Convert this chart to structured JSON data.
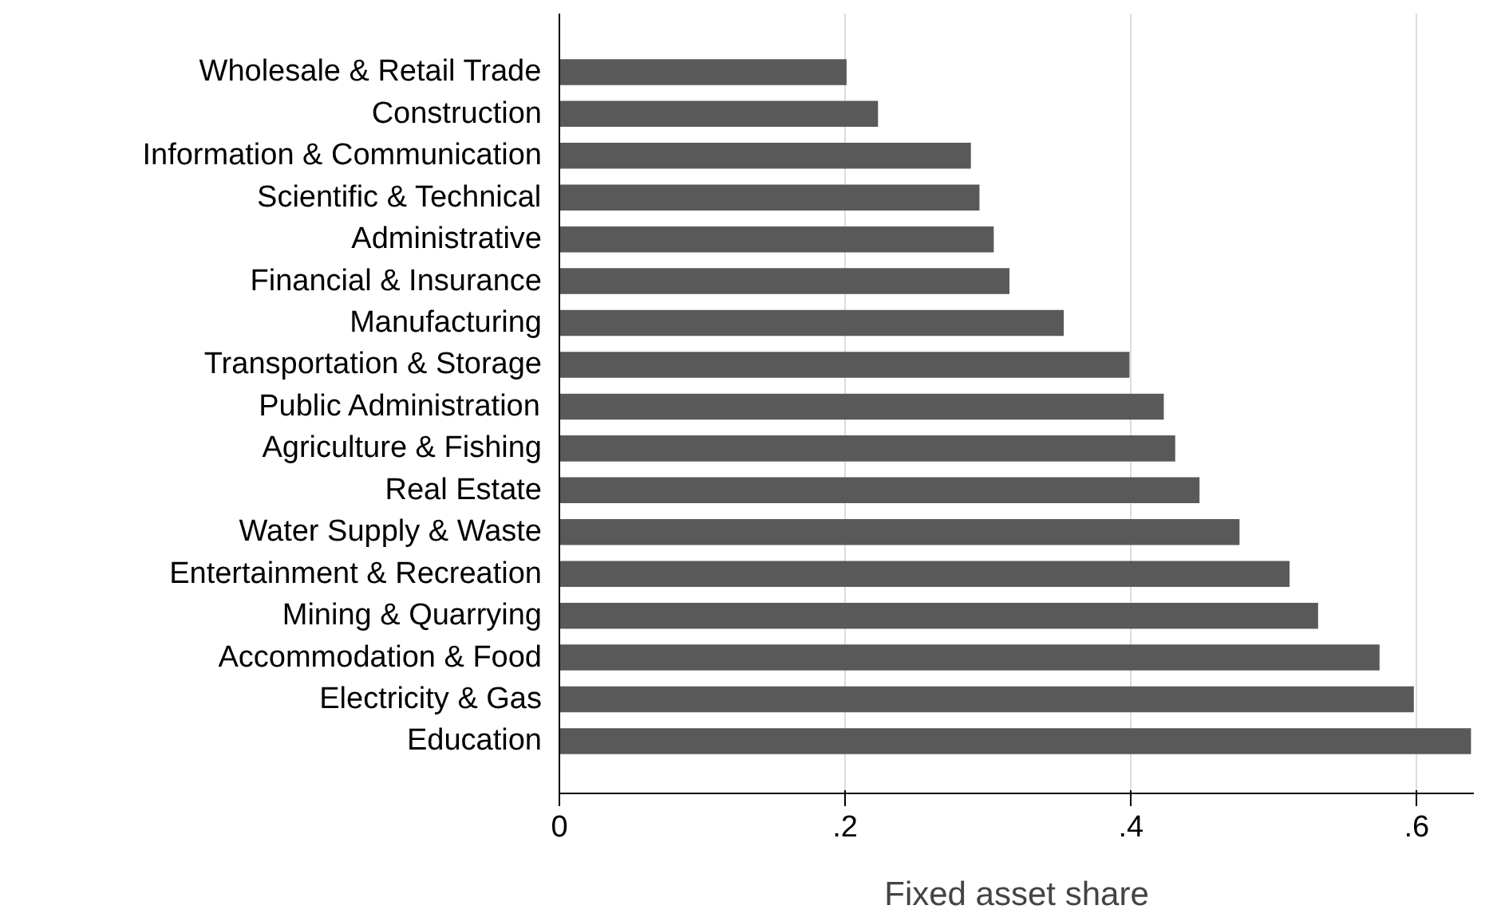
{
  "chart_data": {
    "type": "bar",
    "orientation": "horizontal",
    "xlabel": "Fixed asset share",
    "categories": [
      "Wholesale & Retail Trade",
      "Construction",
      "Information & Communication",
      "Scientific & Technical",
      "Administrative",
      "Financial & Insurance",
      "Manufacturing",
      "Transportation & Storage",
      "Public Administration",
      "Agriculture & Fishing",
      "Real Estate",
      "Water Supply & Waste",
      "Entertainment & Recreation",
      "Mining & Quarrying",
      "Accommodation & Food",
      "Electricity & Gas",
      "Education"
    ],
    "values": [
      0.201,
      0.223,
      0.288,
      0.294,
      0.304,
      0.315,
      0.353,
      0.399,
      0.423,
      0.431,
      0.448,
      0.476,
      0.511,
      0.531,
      0.574,
      0.598,
      0.638
    ],
    "color": "#595959",
    "xlim": [
      0,
      0.64
    ],
    "xticks": [
      0,
      {
        "value": 0.2,
        "label": ".2"
      },
      {
        "value": 0.4,
        "label": ".4"
      },
      {
        "value": 0.6,
        "label": ".6"
      }
    ],
    "grid": "x"
  }
}
